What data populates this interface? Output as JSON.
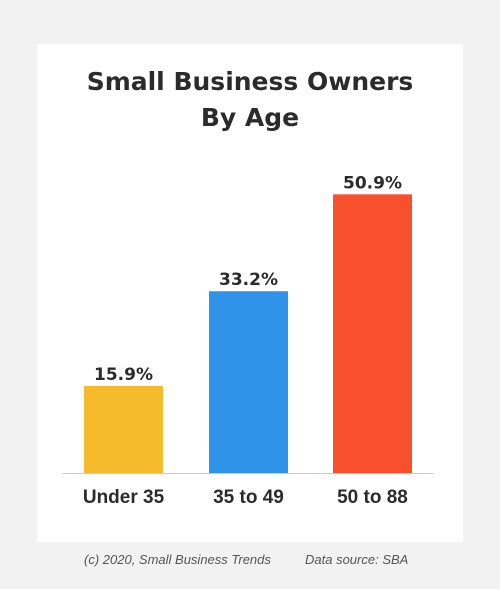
{
  "chart_data": {
    "type": "bar",
    "title": "Small Business Owners By Age",
    "title_lines": [
      "Small Business Owners",
      "By Age"
    ],
    "categories": [
      "Under 35",
      "35 to 49",
      "50 to 88"
    ],
    "values": [
      15.9,
      33.2,
      50.9
    ],
    "data_labels": [
      "15.9%",
      "33.2%",
      "50.9%"
    ],
    "colors": [
      "#f6bb2d",
      "#2f93ea",
      "#f8502d"
    ],
    "ylim": [
      0,
      59
    ],
    "grid": false,
    "legend": "none",
    "xlabel": "",
    "ylabel": ""
  },
  "footer": {
    "credit": "(c) 2020, Small Business Trends",
    "source": "Data source: SBA"
  }
}
